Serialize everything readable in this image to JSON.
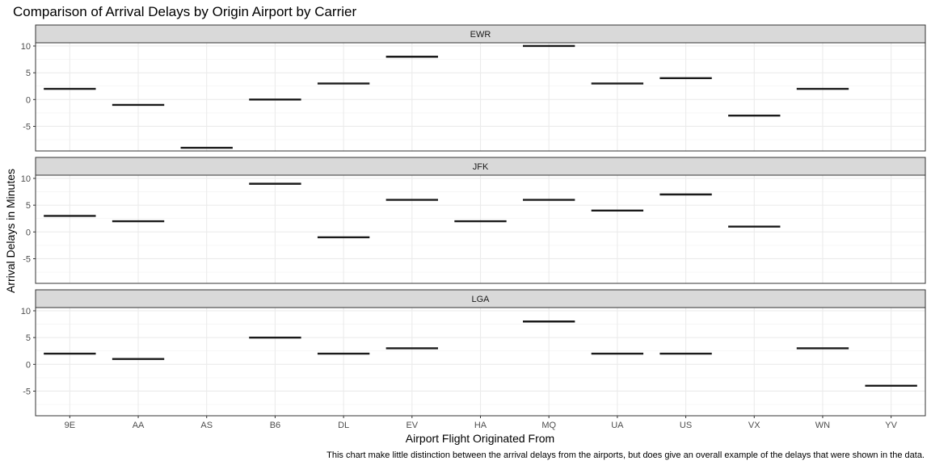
{
  "chart_data": {
    "type": "crossbar",
    "title": "Comparison of Arrival Delays by Origin Airport by Carrier",
    "xlabel": "Airport Flight Originated From",
    "ylabel": "Arrival Delays in Minutes",
    "caption": "This chart make little distinction between the arrival delays from the airports, but does give an overall example of the delays that were shown in the data.",
    "categories": [
      "9E",
      "AA",
      "AS",
      "B6",
      "DL",
      "EV",
      "HA",
      "MQ",
      "UA",
      "US",
      "VX",
      "WN",
      "YV"
    ],
    "yticks": [
      -5,
      0,
      5,
      10
    ],
    "ylim": [
      -9.6,
      10.6
    ],
    "grid": true,
    "facets": [
      {
        "label": "EWR",
        "values": {
          "9E": 2,
          "AA": -1,
          "AS": -9,
          "B6": 0,
          "DL": 3,
          "EV": 8,
          "MQ": 10,
          "UA": 3,
          "US": 4,
          "VX": -3,
          "WN": 2
        }
      },
      {
        "label": "JFK",
        "values": {
          "9E": 3,
          "AA": 2,
          "B6": 9,
          "DL": -1,
          "EV": 6,
          "HA": 2,
          "MQ": 6,
          "UA": 4,
          "US": 7,
          "VX": 1
        }
      },
      {
        "label": "LGA",
        "values": {
          "9E": 2,
          "AA": 1,
          "B6": 5,
          "DL": 2,
          "EV": 3,
          "MQ": 8,
          "UA": 2,
          "US": 2,
          "WN": 3,
          "YV": -4
        }
      }
    ]
  }
}
